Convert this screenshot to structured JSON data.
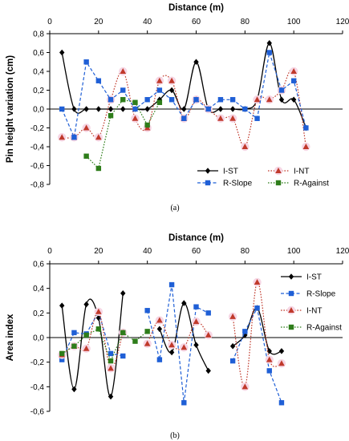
{
  "chart_data": [
    {
      "type": "line",
      "caption": "(a)",
      "xlabel": "Distance (m)",
      "ylabel": "Pin height variation (cm)",
      "xlim": [
        0,
        120
      ],
      "ylim": [
        -0.8,
        0.8
      ],
      "xticks": [
        0,
        20,
        40,
        60,
        80,
        100,
        120
      ],
      "yticks": [
        -0.8,
        -0.6,
        -0.4,
        -0.2,
        0.0,
        0.2,
        0.4,
        0.6,
        0.8
      ],
      "ytick_labels": [
        "-0,8",
        "-0,6",
        "-0,4",
        "-0,2",
        "0,0",
        "0,2",
        "0,4",
        "0,6",
        "0,8"
      ],
      "grid": false,
      "legend_position": "bottom-right",
      "legend_columns": 2,
      "series": [
        {
          "name": "I-ST",
          "color": "#000000",
          "marker": "diamond",
          "dash": "solid",
          "smooth": true,
          "segments": [
            [
              [
                5,
                0.6
              ],
              [
                10,
                0.0
              ],
              [
                15,
                0.0
              ],
              [
                20,
                0.0
              ],
              [
                25,
                0.0
              ],
              [
                30,
                0.0
              ],
              [
                35,
                0.0
              ],
              [
                40,
                0.0
              ],
              [
                45,
                0.1
              ],
              [
                50,
                0.2
              ],
              [
                55,
                0.0
              ],
              [
                60,
                0.5
              ],
              [
                65,
                0.0
              ],
              [
                70,
                0.0
              ],
              [
                75,
                0.0
              ],
              [
                80,
                0.0
              ],
              [
                85,
                0.1
              ],
              [
                90,
                0.7
              ],
              [
                95,
                0.1
              ],
              [
                100,
                0.1
              ],
              [
                105,
                -0.2
              ]
            ]
          ]
        },
        {
          "name": "I-NT",
          "color": "#c0392b",
          "marker": "triangle",
          "dash": "dot",
          "smooth": true,
          "segments": [
            [
              [
                5,
                -0.3
              ],
              [
                10,
                -0.3
              ],
              [
                15,
                -0.2
              ],
              [
                20,
                -0.3
              ],
              [
                25,
                0.1
              ],
              [
                30,
                0.4
              ],
              [
                35,
                -0.1
              ],
              [
                40,
                -0.2
              ],
              [
                45,
                0.3
              ],
              [
                50,
                0.3
              ],
              [
                55,
                -0.1
              ],
              [
                60,
                0.1
              ],
              [
                65,
                0.0
              ],
              [
                70,
                -0.1
              ],
              [
                75,
                -0.1
              ],
              [
                80,
                -0.4
              ],
              [
                85,
                0.1
              ],
              [
                90,
                0.1
              ],
              [
                95,
                0.2
              ],
              [
                100,
                0.4
              ],
              [
                105,
                -0.4
              ]
            ]
          ]
        },
        {
          "name": "R-Slope",
          "color": "#1f5fd6",
          "marker": "square",
          "dash": "dash",
          "smooth": false,
          "segments": [
            [
              [
                5,
                0.0
              ],
              [
                10,
                -0.3
              ],
              [
                15,
                0.5
              ],
              [
                20,
                0.3
              ],
              [
                25,
                0.1
              ],
              [
                30,
                0.2
              ],
              [
                35,
                0.0
              ],
              [
                40,
                0.1
              ],
              [
                45,
                0.2
              ],
              [
                50,
                0.1
              ],
              [
                55,
                -0.1
              ],
              [
                60,
                0.1
              ],
              [
                65,
                0.0
              ],
              [
                70,
                0.1
              ],
              [
                75,
                0.1
              ],
              [
                80,
                0.0
              ],
              [
                85,
                -0.1
              ],
              [
                90,
                0.6
              ],
              [
                95,
                0.2
              ],
              [
                100,
                0.3
              ],
              [
                105,
                -0.2
              ]
            ]
          ]
        },
        {
          "name": "R-Against",
          "color": "#2e7d1a",
          "marker": "square",
          "dash": "dot",
          "smooth": false,
          "segments": [
            [
              [
                15,
                -0.5
              ],
              [
                20,
                -0.63
              ],
              [
                25,
                -0.07
              ],
              [
                30,
                0.1
              ],
              [
                35,
                0.07
              ],
              [
                40,
                -0.17
              ],
              [
                45,
                0.07
              ]
            ]
          ]
        }
      ]
    },
    {
      "type": "line",
      "caption": "(b)",
      "xlabel": "Distance (m)",
      "ylabel": "Area index",
      "xlim": [
        0,
        120
      ],
      "ylim": [
        -0.6,
        0.6
      ],
      "xticks": [
        0,
        20,
        40,
        60,
        80,
        100,
        120
      ],
      "yticks": [
        -0.6,
        -0.4,
        -0.2,
        0.0,
        0.2,
        0.4,
        0.6
      ],
      "ytick_labels": [
        "-0,6",
        "-0,4",
        "-0,2",
        "0,0",
        "0,2",
        "0,4",
        "0,6"
      ],
      "grid": false,
      "legend_position": "right",
      "legend_columns": 1,
      "series": [
        {
          "name": "I-ST",
          "color": "#000000",
          "marker": "diamond",
          "dash": "solid",
          "smooth": true,
          "segments": [
            [
              [
                5,
                0.26
              ],
              [
                10,
                -0.42
              ],
              [
                15,
                0.27
              ],
              [
                20,
                0.16
              ],
              [
                25,
                -0.48
              ],
              [
                30,
                0.36
              ]
            ],
            [
              [
                45,
                0.07
              ],
              [
                50,
                -0.12
              ],
              [
                55,
                0.28
              ],
              [
                60,
                -0.06
              ],
              [
                65,
                -0.27
              ]
            ],
            [
              [
                75,
                -0.07
              ],
              [
                80,
                0.02
              ],
              [
                85,
                0.24
              ],
              [
                90,
                -0.11
              ],
              [
                95,
                -0.11
              ]
            ]
          ]
        },
        {
          "name": "R-Slope",
          "color": "#1f5fd6",
          "marker": "square",
          "dash": "dash",
          "smooth": false,
          "segments": [
            [
              [
                5,
                -0.18
              ],
              [
                10,
                0.04
              ],
              [
                15,
                0.03
              ],
              [
                20,
                0.21
              ],
              [
                25,
                -0.13
              ],
              [
                30,
                -0.15
              ]
            ],
            [
              [
                40,
                0.22
              ],
              [
                45,
                -0.18
              ],
              [
                50,
                0.43
              ],
              [
                55,
                -0.53
              ],
              [
                60,
                0.25
              ],
              [
                65,
                0.2
              ]
            ],
            [
              [
                75,
                -0.19
              ],
              [
                80,
                0.05
              ],
              [
                85,
                0.24
              ],
              [
                90,
                -0.27
              ],
              [
                95,
                -0.53
              ]
            ]
          ]
        },
        {
          "name": "I-NT",
          "color": "#c0392b",
          "marker": "triangle",
          "dash": "dot",
          "smooth": true,
          "segments": [
            [
              [
                5,
                -0.14
              ],
              [
                10,
                -0.07
              ],
              [
                15,
                -0.09
              ],
              [
                20,
                0.21
              ],
              [
                25,
                -0.25
              ],
              [
                30,
                0.04
              ]
            ],
            [
              [
                40,
                -0.05
              ],
              [
                45,
                0.14
              ],
              [
                50,
                -0.06
              ],
              [
                55,
                -0.08
              ],
              [
                60,
                0.13
              ],
              [
                65,
                0.02
              ]
            ],
            [
              [
                75,
                0.17
              ],
              [
                80,
                -0.4
              ],
              [
                85,
                0.45
              ],
              [
                90,
                -0.18
              ],
              [
                95,
                -0.21
              ]
            ]
          ]
        },
        {
          "name": "R-Against",
          "color": "#2e7d1a",
          "marker": "square",
          "dash": "dot",
          "smooth": false,
          "segments": [
            [
              [
                5,
                -0.13
              ],
              [
                10,
                -0.07
              ],
              [
                15,
                0.02
              ],
              [
                20,
                0.07
              ],
              [
                25,
                -0.19
              ],
              [
                30,
                0.04
              ],
              [
                35,
                -0.03
              ],
              [
                40,
                0.05
              ]
            ]
          ]
        }
      ]
    }
  ]
}
